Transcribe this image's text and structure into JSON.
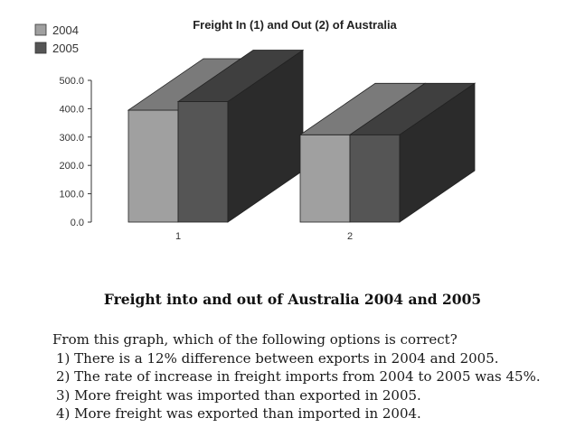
{
  "chart_data": {
    "type": "bar",
    "title": "Freight In (1) and Out (2) of Australia",
    "categories": [
      "1",
      "2"
    ],
    "series": [
      {
        "name": "2004",
        "values": [
          395,
          308
        ],
        "color": "#a0a0a0"
      },
      {
        "name": "2005",
        "values": [
          425,
          308
        ],
        "color": "#555555"
      }
    ],
    "ylim": [
      0,
      500
    ],
    "yticks": [
      "0.0",
      "100.0",
      "200.0",
      "300.0",
      "400.0",
      "500.0"
    ],
    "xlabel": "",
    "ylabel": "",
    "grid": false,
    "legend_position": "top-left",
    "style": "3d"
  },
  "caption": "Freight into and out of Australia 2004 and 2005",
  "question": {
    "prompt": "From this graph, which of the following options is correct?",
    "options": [
      "1) There is a 12% difference between exports in 2004 and 2005.",
      "2) The rate of increase in freight imports from 2004 to 2005 was 45%.",
      "3) More freight was imported than exported in 2005.",
      "4) More freight was exported than imported in 2004."
    ]
  }
}
